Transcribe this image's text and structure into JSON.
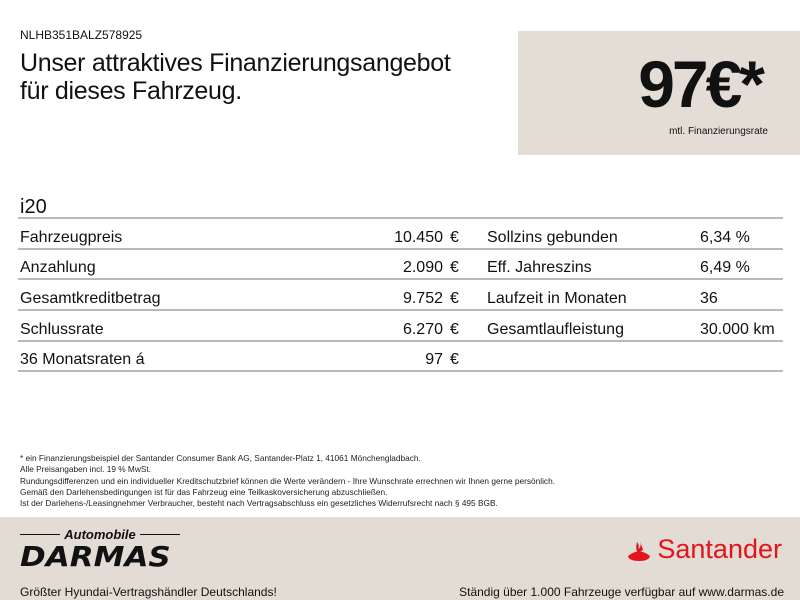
{
  "vin": "NLHB351BALZ578925",
  "title_line1": "Unser attraktives Finanzierungsangebot",
  "title_line2": "für dieses Fahrzeug.",
  "price": "97€*",
  "price_label": "mtl. Finanzierungsrate",
  "model": "i20",
  "rows": [
    {
      "label": "Fahrzeugpreis",
      "value": "10.450",
      "unit": "€",
      "rlabel": "Sollzins gebunden",
      "rvalue": "6,34 %"
    },
    {
      "label": "Anzahlung",
      "value": "2.090",
      "unit": "€",
      "rlabel": "Eff. Jahreszins",
      "rvalue": "6,49 %"
    },
    {
      "label": "Gesamtkreditbetrag",
      "value": "9.752",
      "unit": "€",
      "rlabel": "Laufzeit in Monaten",
      "rvalue": "36"
    },
    {
      "label": "Schlussrate",
      "value": "6.270",
      "unit": "€",
      "rlabel": "Gesamtlaufleistung",
      "rvalue": "30.000 km"
    },
    {
      "label": "36 Monatsraten á",
      "value": "97",
      "unit": "€",
      "rlabel": "",
      "rvalue": ""
    }
  ],
  "notes": [
    "* ein Finanzierungsbeispiel der Santander Consumer Bank AG, Santander-Platz 1, 41061 Mönchengladbach.",
    "Alle Preisangaben incl. 19 % MwSt.",
    "Rundungsdifferenzen und ein individueller Kreditschutzbrief können die Werte verändern - Ihre Wunschrate errechnen wir Ihnen gerne persönlich.",
    "Gemäß den Darlehensbedingungen ist für das Fahrzeug eine Teilkaskoversicherung abzuschließen.",
    "Ist der Darlehens-/Leasingnehmer Verbraucher, besteht nach Vertragsabschluss ein gesetzliches Widerrufsrecht nach § 495 BGB."
  ],
  "footer": {
    "logo_small": "Automobile",
    "logo_big": "DARMAS",
    "bank": "Santander",
    "slogan": "Größter Hyundai-Vertragshändler Deutschlands!",
    "web": "Ständig über 1.000 Fahrzeuge verfügbar auf www.darmas.de",
    "bank_color": "#e3141b"
  }
}
